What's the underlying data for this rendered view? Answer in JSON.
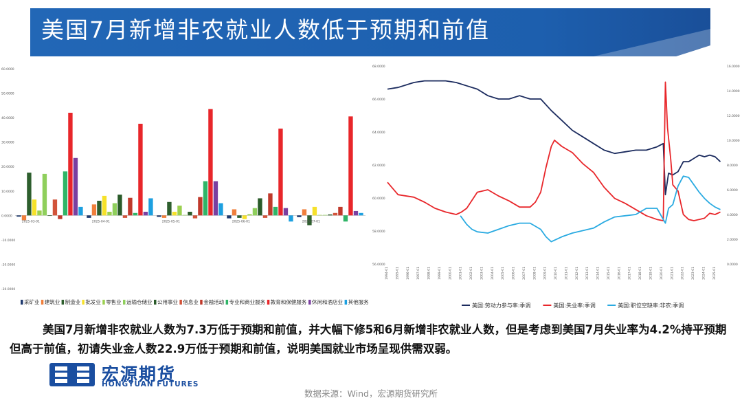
{
  "title": "美国7月新增非农就业人数低于预期和前值",
  "description": "美国7月新增非农就业人数为7.3万低于预期和前值，并大幅下修5和6月新增非农就业人数，但是考虑到美国7月失业率为4.2%持平预期但高于前值，初请失业金人数22.9万低于预期和前值，说明美国就业市场呈现供需双弱。",
  "logo": {
    "cn": "宏源期货",
    "en": "HONGYUAN FUTURES"
  },
  "source": "数据来源：Wind，宏源期货研究所",
  "colors": {
    "title_bg": "#1a5ba8",
    "accent": "#2d7cd6"
  },
  "chart_data": [
    {
      "type": "bar",
      "title": "",
      "ylim": [
        -30,
        60
      ],
      "y_ticks": [
        "60.0000",
        "50.0000",
        "40.0000",
        "30.0000",
        "20.0000",
        "10.0000",
        "0.0000",
        "-10.0000",
        "-20.0000",
        "-30.0000"
      ],
      "y_tick_values": [
        60,
        50,
        40,
        30,
        20,
        10,
        0,
        -10,
        -20,
        -30
      ],
      "categories": [
        "2025-03-01",
        "2025-04-01",
        "2025-05-01",
        "2025-06-01",
        "2025-07-01"
      ],
      "category_labels": [
        "2025-03-01",
        "2025-04-01",
        "2025-05-01",
        "2025-06-01",
        "2025-07-01"
      ],
      "legend_position": "bottom",
      "series": [
        {
          "name": "采矿业",
          "color": "#1f3a6e",
          "values": [
            -0.5,
            -1.0,
            -0.6,
            -1.2,
            -0.7
          ]
        },
        {
          "name": "建筑业",
          "color": "#f07f3c",
          "values": [
            -2.0,
            4.5,
            -1.0,
            2.5,
            2.5
          ]
        },
        {
          "name": "制造业",
          "color": "#2e5f2e",
          "values": [
            17.5,
            6.0,
            5.5,
            -1.0,
            -4.0
          ]
        },
        {
          "name": "批发业",
          "color": "#f6e12a",
          "values": [
            6.5,
            8.0,
            1.5,
            -1.5,
            3.5
          ]
        },
        {
          "name": "零售业",
          "color": "#9bd04f",
          "values": [
            2.0,
            1.5,
            4.0,
            0.5,
            0.2
          ]
        },
        {
          "name": "运输仓储业",
          "color": "#8fcf5c",
          "values": [
            17.0,
            5.0,
            0.2,
            3.0,
            0.2
          ]
        },
        {
          "name": "公用事业",
          "color": "#2a5b2a",
          "values": [
            -0.2,
            8.5,
            1.5,
            7.0,
            0.4
          ]
        },
        {
          "name": "信息业",
          "color": "#d2533a",
          "values": [
            6.5,
            -1.0,
            -1.2,
            -1.0,
            1.0
          ]
        },
        {
          "name": "金融活动",
          "color": "#c0392b",
          "values": [
            -1.5,
            7.2,
            7.5,
            9.0,
            3.5
          ]
        },
        {
          "name": "专业和商业服务",
          "color": "#2fb567",
          "values": [
            18.0,
            1.0,
            14.0,
            3.5,
            -2.5
          ]
        },
        {
          "name": "教育和保健服务",
          "color": "#e8262a",
          "values": [
            42.0,
            37.5,
            43.5,
            35.5,
            40.5
          ]
        },
        {
          "name": "休闲和酒店业",
          "color": "#7a3fa0",
          "values": [
            23.5,
            1.5,
            14.0,
            3.0,
            1.8
          ]
        },
        {
          "name": "其他服务业",
          "color": "#1da0e0",
          "values": [
            3.5,
            7.0,
            5.0,
            -2.5,
            1.0
          ]
        }
      ]
    },
    {
      "type": "line",
      "title": "",
      "x_range": [
        "1994-01",
        "2025-07"
      ],
      "ylim_left": [
        56,
        68
      ],
      "ylim_right": [
        0,
        16
      ],
      "y_ticks_left": [
        "68.0000",
        "66.0000",
        "64.0000",
        "62.0000",
        "60.0000",
        "58.0000",
        "56.0000"
      ],
      "y_ticks_right": [
        "16.0000",
        "14.0000",
        "12.0000",
        "10.0000",
        "8.0000",
        "6.0000",
        "4.0000",
        "2.0000",
        "0.0000"
      ],
      "x_ticks": [
        "1994-01",
        "1995-01",
        "1996-01",
        "1997-01",
        "1998-01",
        "1999-01",
        "2000-01",
        "2001-01",
        "2002-01",
        "2003-01",
        "2004-01",
        "2005-01",
        "2006-01",
        "2007-01",
        "2008-01",
        "2009-01",
        "2010-01",
        "2011-01",
        "2012-01",
        "2013-01",
        "2014-01",
        "2015-01",
        "2016-01",
        "2017-01",
        "2018-01",
        "2019-01",
        "2020-01",
        "2021-01",
        "2022-01",
        "2023-01",
        "2024-01",
        "2025-01"
      ],
      "legend_position": "bottom",
      "series": [
        {
          "name": "美国:劳动力参与率:季调",
          "color": "#1b2b5e",
          "axis": "left",
          "x": [
            1994.0,
            1995.0,
            1996.5,
            1997.5,
            1998.5,
            1999.5,
            2000.5,
            2001.5,
            2002.5,
            2003.5,
            2004.5,
            2005.5,
            2006.5,
            2007.5,
            2008.5,
            2009.5,
            2010.5,
            2011.5,
            2012.5,
            2013.5,
            2014.5,
            2015.5,
            2016.5,
            2017.5,
            2018.5,
            2019.5,
            2020.1,
            2020.3,
            2020.6,
            2021.0,
            2021.5,
            2022.0,
            2022.5,
            2023.0,
            2023.5,
            2024.0,
            2024.5,
            2025.0,
            2025.5
          ],
          "y": [
            66.6,
            66.7,
            67.0,
            67.1,
            67.1,
            67.1,
            67.0,
            66.8,
            66.6,
            66.2,
            66.0,
            66.0,
            66.2,
            66.0,
            66.0,
            65.3,
            64.7,
            64.1,
            63.7,
            63.3,
            62.9,
            62.7,
            62.8,
            62.9,
            62.9,
            63.1,
            63.3,
            60.2,
            61.5,
            61.4,
            61.6,
            62.2,
            62.2,
            62.4,
            62.6,
            62.5,
            62.6,
            62.5,
            62.2
          ]
        },
        {
          "name": "美国:失业率:季调",
          "color": "#e8262a",
          "axis": "right",
          "x": [
            1994.0,
            1995.0,
            1996.5,
            1997.5,
            1998.5,
            1999.5,
            2000.5,
            2001.0,
            2001.5,
            2002.5,
            2003.5,
            2004.5,
            2005.5,
            2006.5,
            2007.5,
            2008.0,
            2008.5,
            2009.0,
            2009.5,
            2009.8,
            2010.5,
            2011.5,
            2012.5,
            2013.5,
            2014.5,
            2015.5,
            2016.5,
            2017.5,
            2018.5,
            2019.5,
            2020.1,
            2020.3,
            2020.5,
            2020.8,
            2021.0,
            2021.5,
            2022.0,
            2022.5,
            2023.0,
            2023.5,
            2024.0,
            2024.5,
            2025.0,
            2025.5
          ],
          "y": [
            6.6,
            5.6,
            5.4,
            5.0,
            4.5,
            4.2,
            4.0,
            4.2,
            4.5,
            5.8,
            6.0,
            5.5,
            5.1,
            4.6,
            4.6,
            5.0,
            5.8,
            7.8,
            9.5,
            10.0,
            9.5,
            9.0,
            8.1,
            7.4,
            6.2,
            5.3,
            4.9,
            4.4,
            3.9,
            3.6,
            3.5,
            14.7,
            11.0,
            8.5,
            6.4,
            5.9,
            4.0,
            3.6,
            3.5,
            3.6,
            3.7,
            4.1,
            4.0,
            4.2
          ]
        },
        {
          "name": "美国:职位空缺率:非农:季调",
          "color": "#29aae1",
          "axis": "right",
          "x": [
            2000.9,
            2001.5,
            2002.0,
            2002.5,
            2003.5,
            2004.5,
            2005.5,
            2006.5,
            2007.5,
            2008.5,
            2009.0,
            2009.5,
            2010.5,
            2011.5,
            2012.5,
            2013.5,
            2014.5,
            2015.5,
            2016.5,
            2017.5,
            2018.5,
            2019.5,
            2020.3,
            2020.6,
            2021.0,
            2021.5,
            2022.0,
            2022.5,
            2023.0,
            2023.5,
            2024.0,
            2024.5,
            2025.0,
            2025.5
          ],
          "y": [
            3.9,
            3.2,
            2.8,
            2.6,
            2.5,
            2.8,
            3.1,
            3.3,
            3.3,
            2.8,
            2.2,
            1.8,
            2.2,
            2.5,
            2.7,
            2.9,
            3.4,
            3.8,
            3.9,
            4.0,
            4.5,
            4.5,
            3.3,
            4.5,
            4.8,
            6.3,
            7.1,
            7.0,
            6.4,
            5.8,
            5.3,
            4.9,
            4.6,
            4.4
          ]
        }
      ]
    }
  ]
}
